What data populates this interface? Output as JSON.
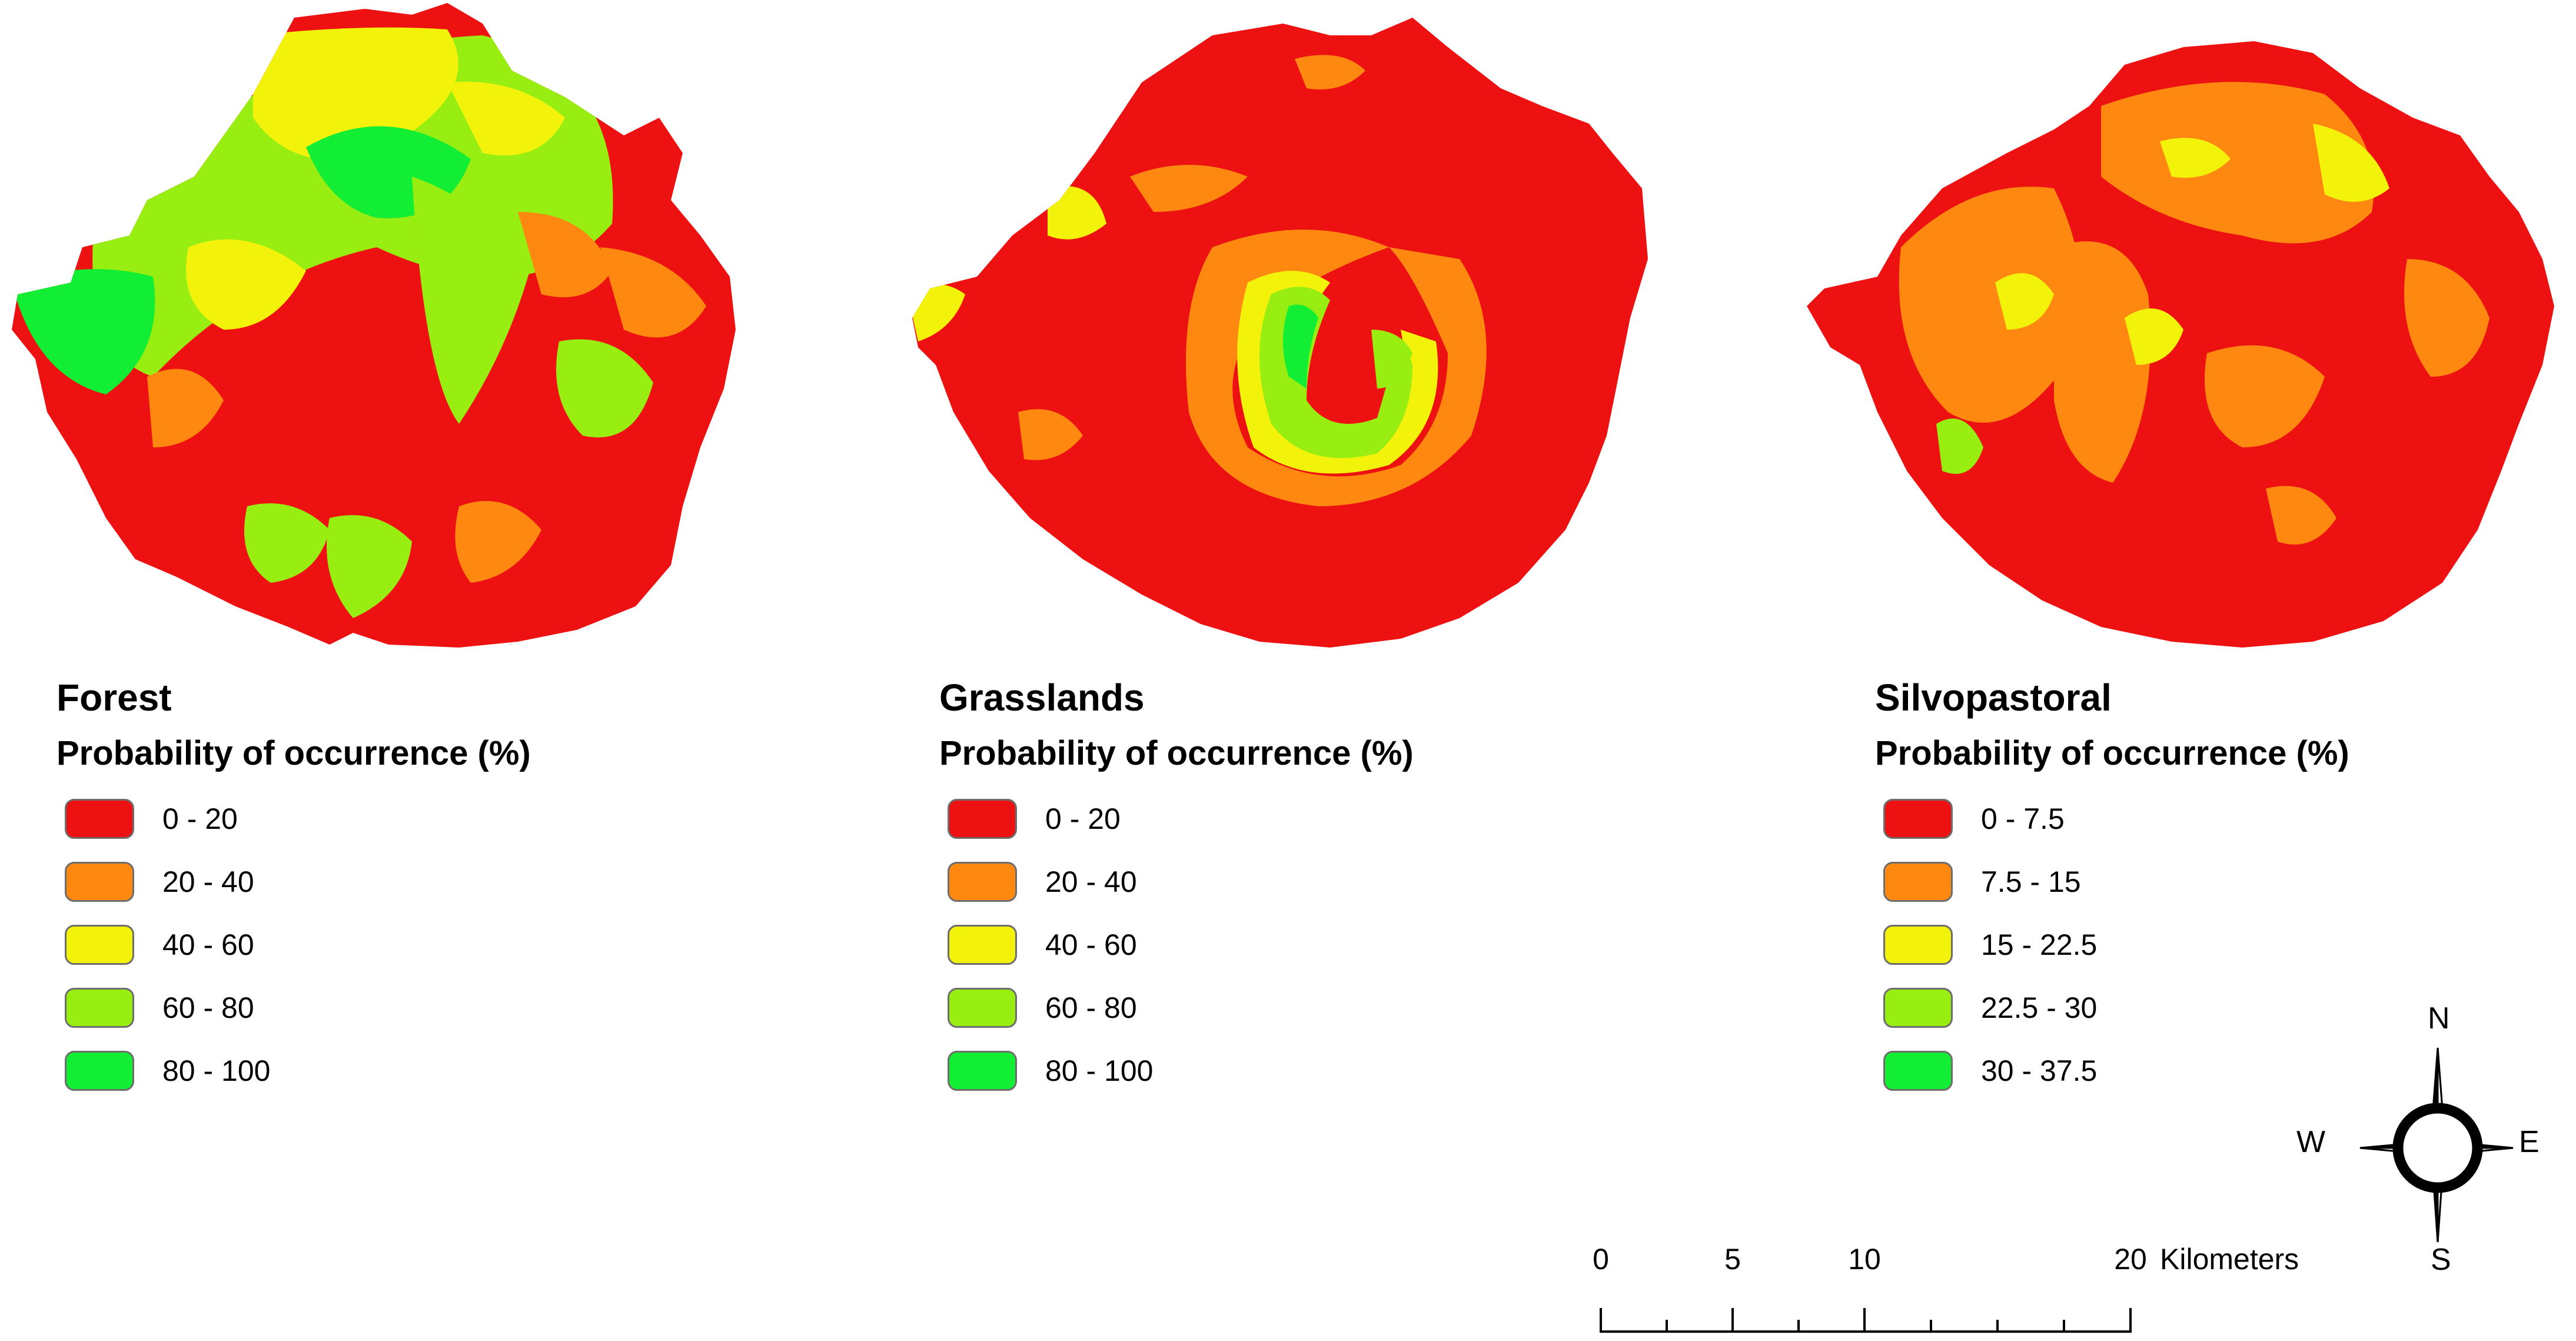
{
  "colors": {
    "class1": "#ee1111",
    "class2": "#ff8811",
    "class3": "#f2f20a",
    "class4": "#99ee11",
    "class5": "#11ee33"
  },
  "panels": [
    {
      "title": "Forest",
      "subtitle": "Probability of occurrence (%)",
      "classes": [
        "0 - 20",
        "20 - 40",
        "40 - 60",
        "60 - 80",
        "80 - 100"
      ]
    },
    {
      "title": "Grasslands",
      "subtitle": "Probability of occurrence (%)",
      "classes": [
        "0 - 20",
        "20 - 40",
        "40 - 60",
        "60 - 80",
        "80 - 100"
      ]
    },
    {
      "title": "Silvopastoral",
      "subtitle": "Probability of occurrence (%)",
      "classes": [
        "0 - 7.5",
        "7.5 - 15",
        "15 - 22.5",
        "22.5 - 30",
        "30 - 37.5"
      ]
    }
  ],
  "scale": {
    "labels": [
      "0",
      "5",
      "10",
      "20"
    ],
    "units": "Kilometers"
  },
  "compass": {
    "n": "N",
    "s": "S",
    "e": "E",
    "w": "W",
    "icon": "north-arrow-icon"
  }
}
